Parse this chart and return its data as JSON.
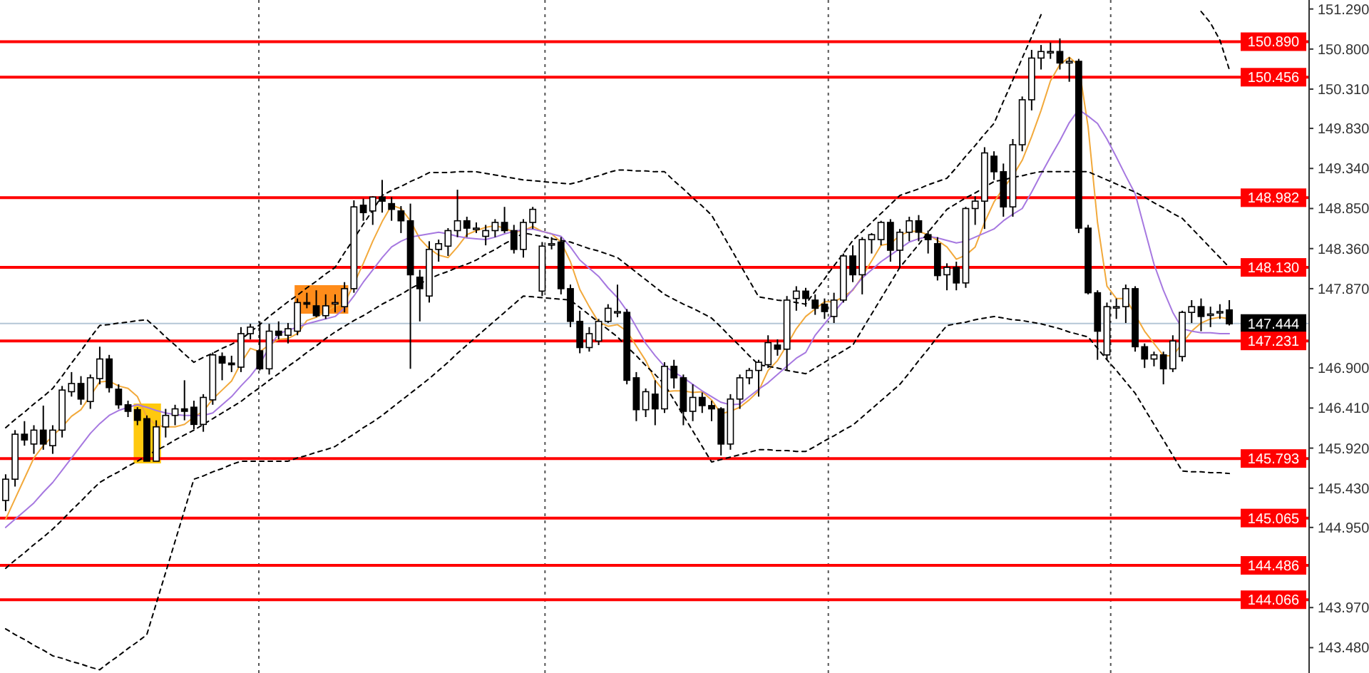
{
  "chart_data": {
    "type": "candlestick",
    "categories": [
      null,
      null,
      null,
      null,
      null,
      null,
      null,
      null,
      null,
      null,
      null,
      null,
      null,
      null,
      null,
      null,
      null,
      null,
      null,
      null,
      null,
      null,
      null,
      null,
      null,
      null,
      null,
      null,
      null,
      null,
      null,
      null,
      null,
      null,
      null,
      null,
      null,
      null,
      null,
      null,
      null,
      null,
      null,
      null,
      null,
      null,
      null,
      null,
      null,
      null,
      null,
      null,
      null,
      null,
      null,
      null,
      null,
      null,
      null,
      null,
      null,
      null,
      null,
      null,
      null,
      null,
      null,
      null,
      null,
      null,
      null,
      null,
      null,
      null,
      null,
      null,
      null,
      null,
      null,
      null,
      null,
      null,
      null,
      null,
      null,
      null,
      null,
      null,
      null,
      null,
      null,
      null,
      null,
      null,
      null,
      null,
      null,
      null,
      null,
      null,
      null,
      null,
      null,
      null,
      null,
      null,
      null,
      null,
      null,
      null,
      null,
      null,
      null,
      null,
      null,
      null,
      null,
      null,
      null,
      null,
      null,
      null,
      null,
      null,
      null,
      null,
      null,
      null,
      null,
      null,
      null
    ],
    "ohlc": [
      [
        145.28,
        145.6,
        145.15,
        145.54
      ],
      [
        145.54,
        146.14,
        145.45,
        146.09
      ],
      [
        146.09,
        146.25,
        145.95,
        146.02
      ],
      [
        145.97,
        146.2,
        145.85,
        146.14
      ],
      [
        146.14,
        146.44,
        145.9,
        145.97
      ],
      [
        145.95,
        146.2,
        145.85,
        146.14
      ],
      [
        146.14,
        146.68,
        146.05,
        146.63
      ],
      [
        146.61,
        146.85,
        146.55,
        146.71
      ],
      [
        146.71,
        146.8,
        146.45,
        146.52
      ],
      [
        146.49,
        146.82,
        146.4,
        146.78
      ],
      [
        146.77,
        147.16,
        146.7,
        147.01
      ],
      [
        147.01,
        147.06,
        146.6,
        146.66
      ],
      [
        146.64,
        146.7,
        146.4,
        146.45
      ],
      [
        146.45,
        146.5,
        146.3,
        146.37
      ],
      [
        146.39,
        146.42,
        146.2,
        146.26
      ],
      [
        146.28,
        146.32,
        145.76,
        145.76
      ],
      [
        145.76,
        146.26,
        145.76,
        146.18
      ],
      [
        146.18,
        146.4,
        146.05,
        146.32
      ],
      [
        146.32,
        146.45,
        146.2,
        146.4
      ],
      [
        146.4,
        146.75,
        146.26,
        146.37
      ],
      [
        146.42,
        146.5,
        146.15,
        146.21
      ],
      [
        146.21,
        146.58,
        146.12,
        146.54
      ],
      [
        146.51,
        147.09,
        146.45,
        147.06
      ],
      [
        147.04,
        147.09,
        146.75,
        146.96
      ],
      [
        146.96,
        147.05,
        146.85,
        146.94
      ],
      [
        146.91,
        147.4,
        146.85,
        147.32
      ],
      [
        147.32,
        147.44,
        147.25,
        147.4
      ],
      [
        147.11,
        147.47,
        146.87,
        146.89
      ],
      [
        146.89,
        147.44,
        146.82,
        147.35
      ],
      [
        147.35,
        147.47,
        147.25,
        147.3
      ],
      [
        147.3,
        147.45,
        147.2,
        147.38
      ],
      [
        147.35,
        147.75,
        147.3,
        147.7
      ],
      [
        147.7,
        147.82,
        147.63,
        147.68
      ],
      [
        147.66,
        147.85,
        147.52,
        147.54
      ],
      [
        147.54,
        147.8,
        147.5,
        147.66
      ],
      [
        147.7,
        147.8,
        147.58,
        147.7
      ],
      [
        147.65,
        147.95,
        147.58,
        147.87
      ],
      [
        147.87,
        148.95,
        147.82,
        148.87
      ],
      [
        148.89,
        148.97,
        148.7,
        148.8
      ],
      [
        148.82,
        149.0,
        148.65,
        148.99
      ],
      [
        148.99,
        149.2,
        148.8,
        148.94
      ],
      [
        148.91,
        148.99,
        148.7,
        148.84
      ],
      [
        148.82,
        148.88,
        148.55,
        148.7
      ],
      [
        148.7,
        148.91,
        146.89,
        148.04
      ],
      [
        148.01,
        148.1,
        147.47,
        147.87
      ],
      [
        147.78,
        148.45,
        147.7,
        148.35
      ],
      [
        148.35,
        148.47,
        148.2,
        148.42
      ],
      [
        148.39,
        148.61,
        148.27,
        148.58
      ],
      [
        148.58,
        149.08,
        148.5,
        148.7
      ],
      [
        148.7,
        148.75,
        148.5,
        148.61
      ],
      [
        148.61,
        148.68,
        148.55,
        148.61
      ],
      [
        148.51,
        148.65,
        148.4,
        148.58
      ],
      [
        148.58,
        148.72,
        148.5,
        148.68
      ],
      [
        148.68,
        148.87,
        148.55,
        148.58
      ],
      [
        148.58,
        148.65,
        148.3,
        148.35
      ],
      [
        148.35,
        148.72,
        148.25,
        148.68
      ],
      [
        148.68,
        148.87,
        148.6,
        148.84
      ],
      [
        147.84,
        148.44,
        147.78,
        148.39
      ],
      [
        148.42,
        148.5,
        148.35,
        148.42
      ],
      [
        148.44,
        148.5,
        147.8,
        147.87
      ],
      [
        147.87,
        147.92,
        147.4,
        147.47
      ],
      [
        147.47,
        147.6,
        147.08,
        147.15
      ],
      [
        147.15,
        147.4,
        147.1,
        147.32
      ],
      [
        147.23,
        147.5,
        147.18,
        147.47
      ],
      [
        147.47,
        147.68,
        147.45,
        147.63
      ],
      [
        147.59,
        147.92,
        147.52,
        147.59
      ],
      [
        147.58,
        147.62,
        146.7,
        146.75
      ],
      [
        146.78,
        146.85,
        146.25,
        146.39
      ],
      [
        146.39,
        146.65,
        146.3,
        146.61
      ],
      [
        146.58,
        146.75,
        146.2,
        146.4
      ],
      [
        146.4,
        146.97,
        146.35,
        146.92
      ],
      [
        146.92,
        147.0,
        146.65,
        146.78
      ],
      [
        146.78,
        146.82,
        146.2,
        146.37
      ],
      [
        146.37,
        146.7,
        146.25,
        146.54
      ],
      [
        146.54,
        146.6,
        146.35,
        146.44
      ],
      [
        146.44,
        146.5,
        146.25,
        146.4
      ],
      [
        146.4,
        146.42,
        145.83,
        145.97
      ],
      [
        145.97,
        146.58,
        145.9,
        146.52
      ],
      [
        146.52,
        146.82,
        146.4,
        146.78
      ],
      [
        146.78,
        146.9,
        146.7,
        146.87
      ],
      [
        146.87,
        147.0,
        146.55,
        146.97
      ],
      [
        146.94,
        147.3,
        146.9,
        147.21
      ],
      [
        147.18,
        147.25,
        147.05,
        147.13
      ],
      [
        147.13,
        147.78,
        146.87,
        147.73
      ],
      [
        147.75,
        147.9,
        147.6,
        147.84
      ],
      [
        147.84,
        147.88,
        147.65,
        147.75
      ],
      [
        147.73,
        147.8,
        147.55,
        147.63
      ],
      [
        147.68,
        147.75,
        147.5,
        147.59
      ],
      [
        147.53,
        147.82,
        147.45,
        147.73
      ],
      [
        147.73,
        148.3,
        147.7,
        148.27
      ],
      [
        148.27,
        148.4,
        147.95,
        148.04
      ],
      [
        148.04,
        148.5,
        147.8,
        148.47
      ],
      [
        148.47,
        148.55,
        148.3,
        148.53
      ],
      [
        148.47,
        148.7,
        148.4,
        148.68
      ],
      [
        148.68,
        148.72,
        148.2,
        148.34
      ],
      [
        148.34,
        148.6,
        148.13,
        148.56
      ],
      [
        148.56,
        148.75,
        148.45,
        148.7
      ],
      [
        148.7,
        148.77,
        148.45,
        148.56
      ],
      [
        148.53,
        148.58,
        148.3,
        148.47
      ],
      [
        148.42,
        148.5,
        147.97,
        148.03
      ],
      [
        148.04,
        148.18,
        147.85,
        148.13
      ],
      [
        148.13,
        148.2,
        147.85,
        147.94
      ],
      [
        147.94,
        148.87,
        147.88,
        148.85
      ],
      [
        148.85,
        149.0,
        148.65,
        148.94
      ],
      [
        148.94,
        149.6,
        148.6,
        149.53
      ],
      [
        149.49,
        149.55,
        149.2,
        149.3
      ],
      [
        149.3,
        149.4,
        148.75,
        148.87
      ],
      [
        148.87,
        149.7,
        148.75,
        149.63
      ],
      [
        149.63,
        150.22,
        149.55,
        150.18
      ],
      [
        150.18,
        150.79,
        150.05,
        150.69
      ],
      [
        150.69,
        150.85,
        150.55,
        150.77
      ],
      [
        150.77,
        150.88,
        150.68,
        150.77
      ],
      [
        150.77,
        150.93,
        150.55,
        150.63
      ],
      [
        150.63,
        150.7,
        150.4,
        150.65
      ],
      [
        150.65,
        150.68,
        148.55,
        148.61
      ],
      [
        148.61,
        148.65,
        147.8,
        147.82
      ],
      [
        147.82,
        147.85,
        147.0,
        147.35
      ],
      [
        147.06,
        147.7,
        147.0,
        147.65
      ],
      [
        147.65,
        147.75,
        147.5,
        147.65
      ],
      [
        147.65,
        147.92,
        147.45,
        147.87
      ],
      [
        147.87,
        147.9,
        147.1,
        147.16
      ],
      [
        147.16,
        147.2,
        146.9,
        147.01
      ],
      [
        147.01,
        147.1,
        146.92,
        147.06
      ],
      [
        147.06,
        147.1,
        146.7,
        146.89
      ],
      [
        146.89,
        147.3,
        146.85,
        147.23
      ],
      [
        147.04,
        147.6,
        146.98,
        147.58
      ],
      [
        147.58,
        147.73,
        147.45,
        147.65
      ],
      [
        147.65,
        147.75,
        147.35,
        147.53
      ],
      [
        147.56,
        147.65,
        147.4,
        147.56
      ],
      [
        147.59,
        147.68,
        147.5,
        147.59
      ],
      [
        147.61,
        147.73,
        147.42,
        147.44
      ]
    ],
    "series": [
      {
        "type": "line",
        "color": "#f2a93b",
        "values": [
          145.05,
          145.3,
          145.55,
          145.8,
          145.95,
          146.07,
          146.18,
          146.31,
          146.39,
          146.56,
          146.73,
          146.74,
          146.68,
          146.65,
          146.55,
          146.3,
          146.2,
          146.18,
          146.18,
          146.21,
          146.3,
          146.37,
          146.52,
          146.63,
          146.74,
          146.96,
          147.14,
          147.1,
          147.18,
          147.25,
          147.26,
          147.32,
          147.48,
          147.52,
          147.59,
          147.66,
          147.69,
          147.93,
          148.18,
          148.45,
          148.69,
          148.89,
          148.85,
          148.7,
          148.48,
          148.36,
          148.28,
          148.25,
          148.38,
          148.53,
          148.58,
          148.62,
          148.64,
          148.61,
          148.56,
          148.58,
          148.63,
          148.57,
          148.54,
          148.44,
          148.2,
          147.86,
          147.65,
          147.46,
          147.41,
          147.43,
          147.35,
          147.17,
          146.99,
          146.75,
          146.61,
          146.62,
          146.62,
          146.6,
          146.61,
          146.51,
          146.34,
          146.37,
          146.42,
          146.51,
          146.62,
          146.87,
          146.99,
          147.18,
          147.38,
          147.53,
          147.62,
          147.71,
          147.71,
          147.77,
          147.85,
          148.02,
          148.21,
          148.4,
          148.42,
          148.52,
          148.57,
          148.57,
          148.53,
          148.46,
          148.38,
          148.23,
          148.28,
          148.38,
          148.68,
          148.93,
          149.1,
          149.25,
          149.44,
          149.73,
          150.05,
          150.41,
          150.61,
          150.7,
          150.6,
          149.85,
          148.68,
          147.9,
          147.75,
          147.75,
          147.55,
          147.35,
          147.2,
          147.05,
          147.05,
          147.2,
          147.35,
          147.45,
          147.5,
          147.52,
          147.5
        ]
      },
      {
        "type": "line",
        "color": "#a678e0",
        "values": [
          144.95,
          145.05,
          145.15,
          145.25,
          145.38,
          145.5,
          145.65,
          145.8,
          145.95,
          146.1,
          146.22,
          146.32,
          146.38,
          146.42,
          146.45,
          146.42,
          146.38,
          146.35,
          146.33,
          146.32,
          146.32,
          146.32,
          146.35,
          146.45,
          146.55,
          146.68,
          146.8,
          146.95,
          147.15,
          147.32,
          147.36,
          147.4,
          147.44,
          147.47,
          147.5,
          147.53,
          147.63,
          147.78,
          147.95,
          148.1,
          148.25,
          148.38,
          148.45,
          148.5,
          148.52,
          148.54,
          148.56,
          148.54,
          148.51,
          148.49,
          148.48,
          148.47,
          148.5,
          148.54,
          148.57,
          148.59,
          148.6,
          148.57,
          148.54,
          148.51,
          148.38,
          148.22,
          148.12,
          148.02,
          147.88,
          147.76,
          147.6,
          147.4,
          147.2,
          147.05,
          146.92,
          146.85,
          146.78,
          146.7,
          146.62,
          146.55,
          146.48,
          146.45,
          146.46,
          146.55,
          146.64,
          146.72,
          146.82,
          146.92,
          147.02,
          147.09,
          147.3,
          147.44,
          147.58,
          147.72,
          147.86,
          148.0,
          148.1,
          148.2,
          148.28,
          148.36,
          148.44,
          148.48,
          148.51,
          148.49,
          148.46,
          148.43,
          148.45,
          148.5,
          148.55,
          148.6,
          148.7,
          148.78,
          148.85,
          149.05,
          149.27,
          149.48,
          149.68,
          149.9,
          150.06,
          149.98,
          149.89,
          149.7,
          149.48,
          149.25,
          149.03,
          148.6,
          148.17,
          147.85,
          147.58,
          147.38,
          147.35,
          147.33,
          147.33,
          147.32,
          147.32
        ]
      },
      {
        "type": "line",
        "color": "#000000",
        "line_style": "dashed",
        "values": [
          146.17,
          146.27,
          146.36,
          146.46,
          146.55,
          146.65,
          146.8,
          146.96,
          147.11,
          147.27,
          147.42,
          147.43,
          147.45,
          147.46,
          147.48,
          147.49,
          147.39,
          147.28,
          147.18,
          147.07,
          146.97,
          147.03,
          147.08,
          147.14,
          147.19,
          147.25,
          147.34,
          147.43,
          147.53,
          147.62,
          147.71,
          147.79,
          147.88,
          147.96,
          148.05,
          148.13,
          148.31,
          148.48,
          148.66,
          148.83,
          149.01,
          149.07,
          149.12,
          149.18,
          149.23,
          149.29,
          149.29,
          149.29,
          149.3,
          149.3,
          149.3,
          149.28,
          149.26,
          149.24,
          149.22,
          149.2,
          149.19,
          149.18,
          149.17,
          149.16,
          149.15,
          149.18,
          149.22,
          149.25,
          149.29,
          149.32,
          149.32,
          149.31,
          149.31,
          149.3,
          149.3,
          149.19,
          149.09,
          148.98,
          148.88,
          148.77,
          148.57,
          148.37,
          148.17,
          147.97,
          147.77,
          147.75,
          147.73,
          147.72,
          147.7,
          147.68,
          147.84,
          147.99,
          148.15,
          148.3,
          148.46,
          148.57,
          148.68,
          148.79,
          148.9,
          149.01,
          149.05,
          149.09,
          149.14,
          149.18,
          149.22,
          149.35,
          149.49,
          149.62,
          149.76,
          149.89,
          150.16,
          150.42,
          150.69,
          150.95,
          151.22,
          null,
          null,
          null,
          null,
          null,
          null,
          null,
          null,
          null,
          null,
          null,
          null,
          null,
          null,
          null,
          null,
          151.26,
          151.12,
          150.91,
          150.55
        ]
      },
      {
        "type": "line",
        "color": "#000000",
        "line_style": "dashed",
        "values": [
          144.45,
          144.55,
          144.64,
          144.74,
          144.83,
          144.93,
          145.04,
          145.16,
          145.27,
          145.39,
          145.5,
          145.57,
          145.63,
          145.7,
          145.76,
          145.83,
          145.89,
          145.95,
          146.02,
          146.08,
          146.14,
          146.21,
          146.28,
          146.35,
          146.42,
          146.49,
          146.58,
          146.66,
          146.75,
          146.83,
          146.92,
          147.0,
          147.09,
          147.17,
          147.26,
          147.34,
          147.41,
          147.48,
          147.54,
          147.61,
          147.68,
          147.74,
          147.8,
          147.87,
          147.93,
          147.99,
          148.04,
          148.08,
          148.13,
          148.17,
          148.22,
          148.29,
          148.35,
          148.42,
          148.48,
          148.55,
          148.53,
          148.51,
          148.48,
          148.46,
          148.44,
          148.4,
          148.36,
          148.33,
          148.29,
          148.25,
          148.16,
          148.07,
          147.98,
          147.89,
          147.8,
          147.74,
          147.68,
          147.63,
          147.57,
          147.51,
          147.4,
          147.28,
          147.17,
          147.05,
          146.94,
          146.92,
          146.9,
          146.87,
          146.85,
          146.83,
          146.9,
          146.97,
          147.04,
          147.11,
          147.18,
          147.37,
          147.56,
          147.75,
          147.94,
          148.13,
          148.27,
          148.41,
          148.56,
          148.7,
          148.84,
          148.91,
          148.98,
          149.04,
          149.11,
          149.18,
          149.2,
          149.23,
          149.25,
          149.28,
          149.3,
          149.3,
          149.3,
          149.3,
          149.3,
          149.3,
          149.25,
          149.2,
          149.15,
          149.1,
          149.05,
          148.99,
          148.92,
          148.86,
          148.79,
          148.73,
          148.61,
          148.49,
          148.37,
          148.25,
          148.13
        ]
      },
      {
        "type": "line",
        "color": "#000000",
        "line_style": "dashed",
        "values": [
          143.71,
          143.64,
          143.58,
          143.51,
          143.45,
          143.38,
          143.35,
          143.31,
          143.28,
          143.24,
          143.21,
          143.3,
          143.38,
          143.47,
          143.55,
          143.64,
          144.02,
          144.4,
          144.78,
          145.16,
          145.54,
          145.58,
          145.63,
          145.67,
          145.72,
          145.76,
          145.76,
          145.76,
          145.76,
          145.76,
          145.76,
          145.8,
          145.83,
          145.87,
          145.9,
          145.94,
          146.02,
          146.09,
          146.17,
          146.24,
          146.32,
          146.41,
          146.5,
          146.59,
          146.68,
          146.77,
          146.87,
          146.97,
          147.08,
          147.18,
          147.28,
          147.38,
          147.48,
          147.58,
          147.68,
          147.78,
          147.77,
          147.76,
          147.75,
          147.74,
          147.73,
          147.64,
          147.55,
          147.46,
          147.37,
          147.28,
          147.16,
          147.05,
          146.93,
          146.82,
          146.7,
          146.51,
          146.32,
          146.13,
          145.94,
          145.75,
          145.78,
          145.81,
          145.84,
          145.87,
          145.9,
          145.9,
          145.89,
          145.89,
          145.88,
          145.88,
          145.94,
          146.01,
          146.07,
          146.14,
          146.2,
          146.3,
          146.4,
          146.5,
          146.6,
          146.7,
          146.84,
          146.99,
          147.13,
          147.28,
          147.42,
          147.44,
          147.46,
          147.49,
          147.51,
          147.53,
          147.51,
          147.49,
          147.48,
          147.46,
          147.44,
          147.41,
          147.38,
          147.34,
          147.31,
          147.28,
          147.14,
          147.0,
          146.87,
          146.73,
          146.59,
          146.4,
          146.21,
          146.02,
          145.83,
          145.64,
          145.63,
          145.63,
          145.62,
          145.62,
          145.61
        ]
      }
    ],
    "ylim": [
      143.17,
      151.4
    ],
    "yticks": [
      {
        "value": 151.29,
        "label": "151.290"
      },
      {
        "value": 150.8,
        "label": "150.800"
      },
      {
        "value": 150.31,
        "label": "150.310"
      },
      {
        "value": 149.83,
        "label": "149.830"
      },
      {
        "value": 149.34,
        "label": "149.340"
      },
      {
        "value": 148.85,
        "label": "148.850"
      },
      {
        "value": 148.36,
        "label": "148.360"
      },
      {
        "value": 147.87,
        "label": "147.870"
      },
      {
        "value": 146.9,
        "label": "146.900"
      },
      {
        "value": 146.41,
        "label": "146.410"
      },
      {
        "value": 145.92,
        "label": "145.920"
      },
      {
        "value": 145.43,
        "label": "145.430"
      },
      {
        "value": 144.95,
        "label": "144.950"
      },
      {
        "value": 143.97,
        "label": "143.970"
      },
      {
        "value": 143.48,
        "label": "143.480"
      }
    ],
    "ref_lines": [
      {
        "axis": "y",
        "value": 150.89,
        "label": "150.890",
        "color": "#ff0000"
      },
      {
        "axis": "y",
        "value": 150.456,
        "label": "150.456",
        "color": "#ff0000"
      },
      {
        "axis": "y",
        "value": 148.982,
        "label": "148.982",
        "color": "#ff0000"
      },
      {
        "axis": "y",
        "value": 148.13,
        "label": "148.130",
        "color": "#ff0000"
      },
      {
        "axis": "y",
        "value": 147.444,
        "label": "147.444",
        "color": "#b4c6d6"
      },
      {
        "axis": "y",
        "value": 147.231,
        "label": "147.231",
        "color": "#ff0000"
      },
      {
        "axis": "y",
        "value": 145.793,
        "label": "145.793",
        "color": "#ff0000"
      },
      {
        "axis": "y",
        "value": 145.065,
        "label": "145.065",
        "color": "#ff0000"
      },
      {
        "axis": "y",
        "value": 144.486,
        "label": "144.486",
        "color": "#ff0000"
      },
      {
        "axis": "y",
        "value": 144.066,
        "label": "144.066",
        "color": "#ff0000"
      }
    ],
    "tick_labels": "y"
  }
}
